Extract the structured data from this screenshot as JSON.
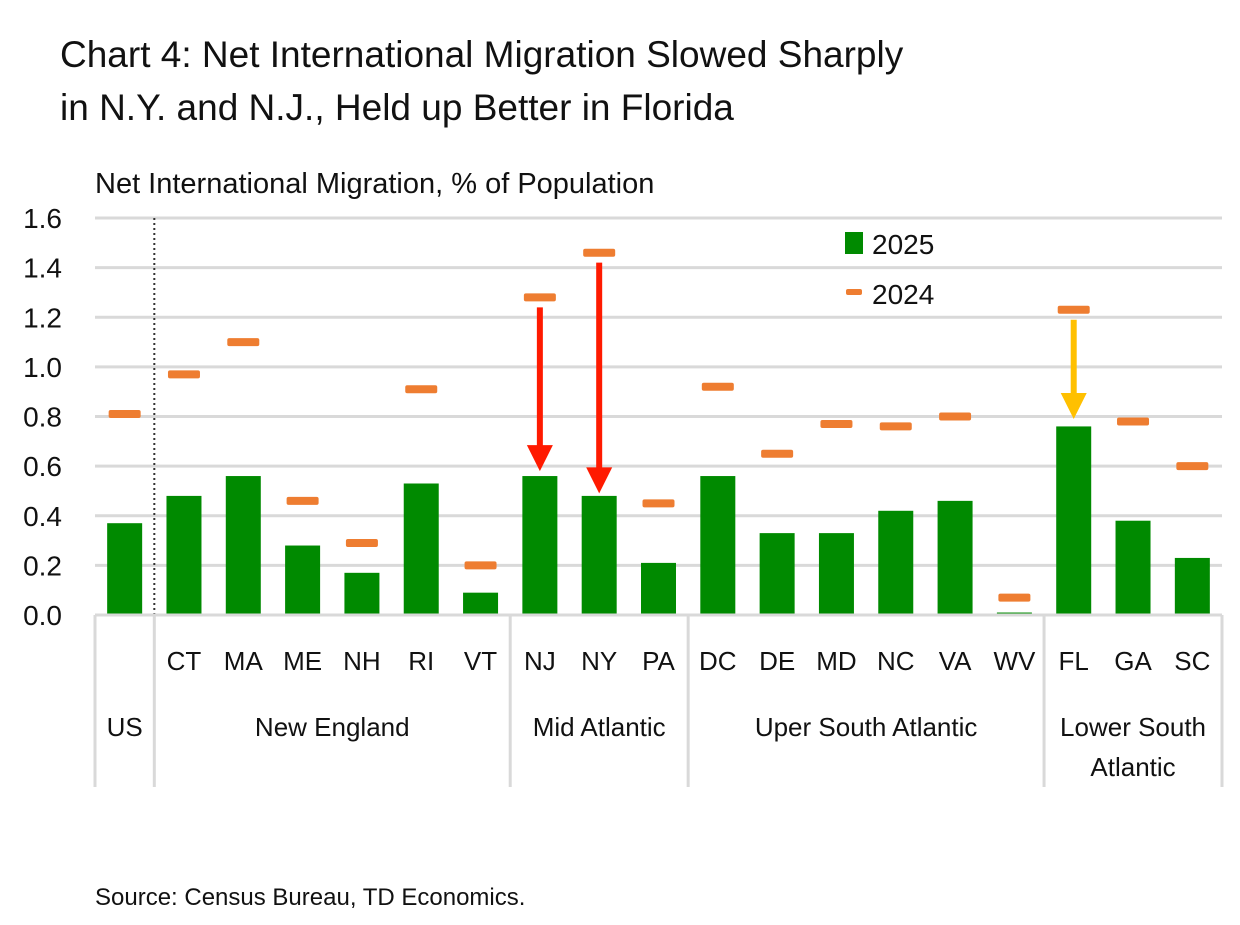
{
  "title_line1": "Chart 4: Net International Migration Slowed Sharply",
  "title_line2": "in N.Y. and N.J., Held up Better in Florida",
  "source": "Source: Census Bureau, TD Economics.",
  "colors": {
    "bar_2025": "#008a00",
    "marker_2024": "#ee7d31",
    "arrow_decline": "#ff1a00",
    "arrow_fl": "#ffc000",
    "grid": "#d9d9d9"
  },
  "chart_data": {
    "type": "bar",
    "ylabel": "Net International Migration, % of Population",
    "ylim": [
      0,
      1.6
    ],
    "yticks": [
      "0.0",
      "0.2",
      "0.4",
      "0.6",
      "0.8",
      "1.0",
      "1.2",
      "1.4",
      "1.6"
    ],
    "grid": true,
    "legend_position": "top-right",
    "categories": [
      "US",
      "CT",
      "MA",
      "ME",
      "NH",
      "RI",
      "VT",
      "NJ",
      "NY",
      "PA",
      "DC",
      "DE",
      "MD",
      "NC",
      "VA",
      "WV",
      "FL",
      "GA",
      "SC"
    ],
    "groups": [
      {
        "label": "US",
        "span": 1
      },
      {
        "label": "New England",
        "span": 6
      },
      {
        "label": "Mid Atlantic",
        "span": 3
      },
      {
        "label": "Uper South Atlantic",
        "span": 6
      },
      {
        "label": "Lower South Atlantic",
        "span": 3
      }
    ],
    "series": [
      {
        "name": "2025",
        "style": "bar",
        "values": [
          0.37,
          0.48,
          0.56,
          0.28,
          0.17,
          0.53,
          0.09,
          0.56,
          0.48,
          0.21,
          0.56,
          0.33,
          0.33,
          0.42,
          0.46,
          0.01,
          0.76,
          0.38,
          0.23
        ]
      },
      {
        "name": "2024",
        "style": "dash-marker",
        "values": [
          0.81,
          0.97,
          1.1,
          0.46,
          0.29,
          0.91,
          0.2,
          1.28,
          1.46,
          0.45,
          0.92,
          0.65,
          0.77,
          0.76,
          0.8,
          0.07,
          1.23,
          0.78,
          0.6
        ]
      }
    ],
    "annotations": [
      {
        "type": "arrow",
        "category": "NJ",
        "from": 1.24,
        "to": 0.58,
        "color": "#ff1a00"
      },
      {
        "type": "arrow",
        "category": "NY",
        "from": 1.42,
        "to": 0.49,
        "color": "#ff1a00"
      },
      {
        "type": "arrow",
        "category": "FL",
        "from": 1.19,
        "to": 0.79,
        "color": "#ffc000"
      }
    ]
  }
}
